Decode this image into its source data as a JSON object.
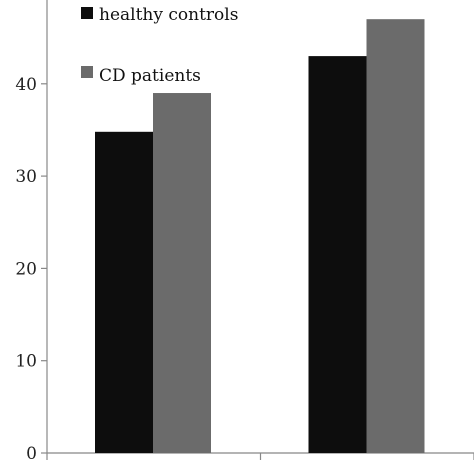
{
  "chart_data": {
    "type": "bar",
    "categories": [
      "",
      ""
    ],
    "series": [
      {
        "name": "healthy controls",
        "values": [
          34.8,
          43.0
        ],
        "color": "#0d0d0d"
      },
      {
        "name": "CD patients",
        "values": [
          39.0,
          47.0
        ],
        "color": "#6b6b6b"
      }
    ],
    "yticks": [
      0,
      10,
      20,
      30,
      40
    ],
    "ylim": [
      0,
      50
    ],
    "grid": false,
    "legend_position": "top-left"
  }
}
